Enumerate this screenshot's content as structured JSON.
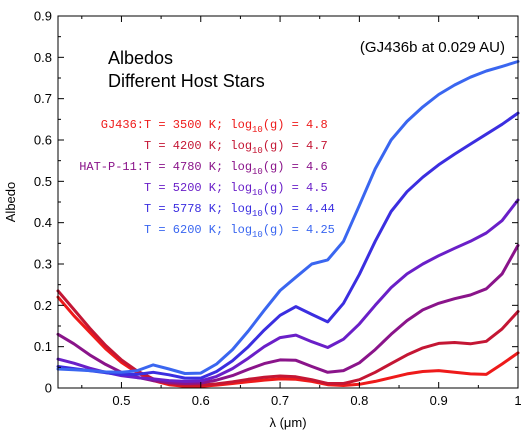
{
  "chart_data": {
    "type": "line",
    "title_lines": [
      "Albedos",
      "Different Host Stars"
    ],
    "annotation": "(GJ436b at 0.029 AU)",
    "xlabel": "λ (μm)",
    "ylabel": "Albedo",
    "xlim": [
      0.42,
      1.0
    ],
    "ylim": [
      0,
      0.9
    ],
    "xticks": [
      0.5,
      0.6,
      0.7,
      0.8,
      0.9,
      1.0
    ],
    "xtick_labels": [
      "0.5",
      "0.6",
      "0.7",
      "0.8",
      "0.9",
      "1"
    ],
    "yticks": [
      0,
      0.1,
      0.2,
      0.3,
      0.4,
      0.5,
      0.6,
      0.7,
      0.8,
      0.9
    ],
    "ytick_labels": [
      "0",
      "0.1",
      "0.2",
      "0.3",
      "0.4",
      "0.5",
      "0.6",
      "0.7",
      "0.8",
      "0.9"
    ],
    "grid": false,
    "legend_position": "upper-left",
    "series": [
      {
        "prefix": "GJ436: ",
        "label_main": "T = 3500 K; log",
        "label_sub": "10",
        "label_tail": "(g) = 4.8",
        "color": "#ee1a1a",
        "x": [
          0.42,
          0.44,
          0.46,
          0.48,
          0.5,
          0.52,
          0.54,
          0.56,
          0.58,
          0.6,
          0.62,
          0.64,
          0.66,
          0.68,
          0.7,
          0.72,
          0.74,
          0.76,
          0.78,
          0.8,
          0.82,
          0.84,
          0.86,
          0.88,
          0.9,
          0.92,
          0.94,
          0.96,
          0.98,
          1.0
        ],
        "y": [
          0.22,
          0.175,
          0.135,
          0.095,
          0.062,
          0.037,
          0.018,
          0.008,
          0.004,
          0.004,
          0.007,
          0.011,
          0.015,
          0.019,
          0.022,
          0.021,
          0.016,
          0.008,
          0.006,
          0.009,
          0.016,
          0.025,
          0.034,
          0.04,
          0.042,
          0.038,
          0.034,
          0.033,
          0.058,
          0.085
        ]
      },
      {
        "prefix": "",
        "label_main": "T = 4200 K; log",
        "label_sub": "10",
        "label_tail": "(g) = 4.7",
        "color": "#c41634",
        "x": [
          0.42,
          0.44,
          0.46,
          0.48,
          0.5,
          0.52,
          0.54,
          0.56,
          0.58,
          0.6,
          0.62,
          0.64,
          0.66,
          0.68,
          0.7,
          0.72,
          0.74,
          0.76,
          0.78,
          0.8,
          0.82,
          0.84,
          0.86,
          0.88,
          0.9,
          0.92,
          0.94,
          0.96,
          0.98,
          1.0
        ],
        "y": [
          0.235,
          0.19,
          0.145,
          0.103,
          0.068,
          0.041,
          0.022,
          0.011,
          0.007,
          0.007,
          0.01,
          0.015,
          0.021,
          0.026,
          0.029,
          0.027,
          0.02,
          0.011,
          0.011,
          0.02,
          0.038,
          0.059,
          0.08,
          0.097,
          0.108,
          0.11,
          0.107,
          0.113,
          0.143,
          0.185
        ]
      },
      {
        "prefix": "HAT-P-11: ",
        "label_main": "T = 4780 K; log",
        "label_sub": "10",
        "label_tail": "(g) = 4.6",
        "color": "#8a148a",
        "x": [
          0.42,
          0.44,
          0.46,
          0.48,
          0.5,
          0.52,
          0.54,
          0.56,
          0.58,
          0.6,
          0.62,
          0.64,
          0.66,
          0.68,
          0.7,
          0.72,
          0.74,
          0.76,
          0.78,
          0.8,
          0.82,
          0.84,
          0.86,
          0.88,
          0.9,
          0.92,
          0.94,
          0.96,
          0.98,
          1.0
        ],
        "y": [
          0.13,
          0.107,
          0.08,
          0.057,
          0.038,
          0.026,
          0.018,
          0.013,
          0.011,
          0.012,
          0.019,
          0.03,
          0.045,
          0.059,
          0.068,
          0.067,
          0.052,
          0.038,
          0.042,
          0.061,
          0.093,
          0.13,
          0.163,
          0.189,
          0.205,
          0.216,
          0.225,
          0.24,
          0.276,
          0.345
        ]
      },
      {
        "prefix": "",
        "label_main": "T = 5200 K; log",
        "label_sub": "10",
        "label_tail": "(g) = 4.5",
        "color": "#6a1fc8",
        "x": [
          0.42,
          0.44,
          0.46,
          0.48,
          0.5,
          0.52,
          0.54,
          0.56,
          0.58,
          0.6,
          0.62,
          0.64,
          0.66,
          0.68,
          0.7,
          0.72,
          0.74,
          0.76,
          0.78,
          0.8,
          0.82,
          0.84,
          0.86,
          0.88,
          0.9,
          0.92,
          0.94,
          0.96,
          0.98,
          1.0
        ],
        "y": [
          0.07,
          0.06,
          0.048,
          0.038,
          0.03,
          0.025,
          0.022,
          0.018,
          0.016,
          0.017,
          0.028,
          0.047,
          0.072,
          0.1,
          0.122,
          0.128,
          0.112,
          0.098,
          0.118,
          0.155,
          0.2,
          0.243,
          0.276,
          0.3,
          0.32,
          0.338,
          0.355,
          0.375,
          0.405,
          0.455
        ]
      },
      {
        "prefix": "",
        "label_main": "T = 5778 K; log",
        "label_sub": "10",
        "label_tail": "(g) = 4.44",
        "color": "#3b2ee0",
        "x": [
          0.42,
          0.44,
          0.46,
          0.48,
          0.5,
          0.52,
          0.54,
          0.56,
          0.58,
          0.6,
          0.62,
          0.64,
          0.66,
          0.68,
          0.7,
          0.72,
          0.74,
          0.76,
          0.78,
          0.8,
          0.82,
          0.84,
          0.86,
          0.88,
          0.9,
          0.92,
          0.94,
          0.96,
          0.98,
          1.0
        ],
        "y": [
          0.052,
          0.047,
          0.042,
          0.037,
          0.033,
          0.033,
          0.038,
          0.032,
          0.024,
          0.024,
          0.04,
          0.066,
          0.1,
          0.14,
          0.176,
          0.197,
          0.178,
          0.16,
          0.205,
          0.275,
          0.355,
          0.427,
          0.475,
          0.51,
          0.54,
          0.566,
          0.59,
          0.614,
          0.638,
          0.665
        ]
      },
      {
        "prefix": "",
        "label_main": "T = 6200 K; log",
        "label_sub": "10",
        "label_tail": "(g) = 4.25",
        "color": "#3a66f0",
        "x": [
          0.42,
          0.44,
          0.46,
          0.48,
          0.5,
          0.52,
          0.54,
          0.56,
          0.58,
          0.6,
          0.62,
          0.64,
          0.66,
          0.68,
          0.7,
          0.72,
          0.74,
          0.76,
          0.78,
          0.8,
          0.82,
          0.84,
          0.86,
          0.88,
          0.9,
          0.92,
          0.94,
          0.96,
          0.98,
          1.0
        ],
        "y": [
          0.046,
          0.044,
          0.042,
          0.039,
          0.038,
          0.042,
          0.056,
          0.046,
          0.035,
          0.036,
          0.058,
          0.093,
          0.138,
          0.188,
          0.236,
          0.268,
          0.3,
          0.31,
          0.355,
          0.442,
          0.53,
          0.6,
          0.645,
          0.68,
          0.71,
          0.733,
          0.752,
          0.767,
          0.778,
          0.79
        ]
      }
    ]
  }
}
